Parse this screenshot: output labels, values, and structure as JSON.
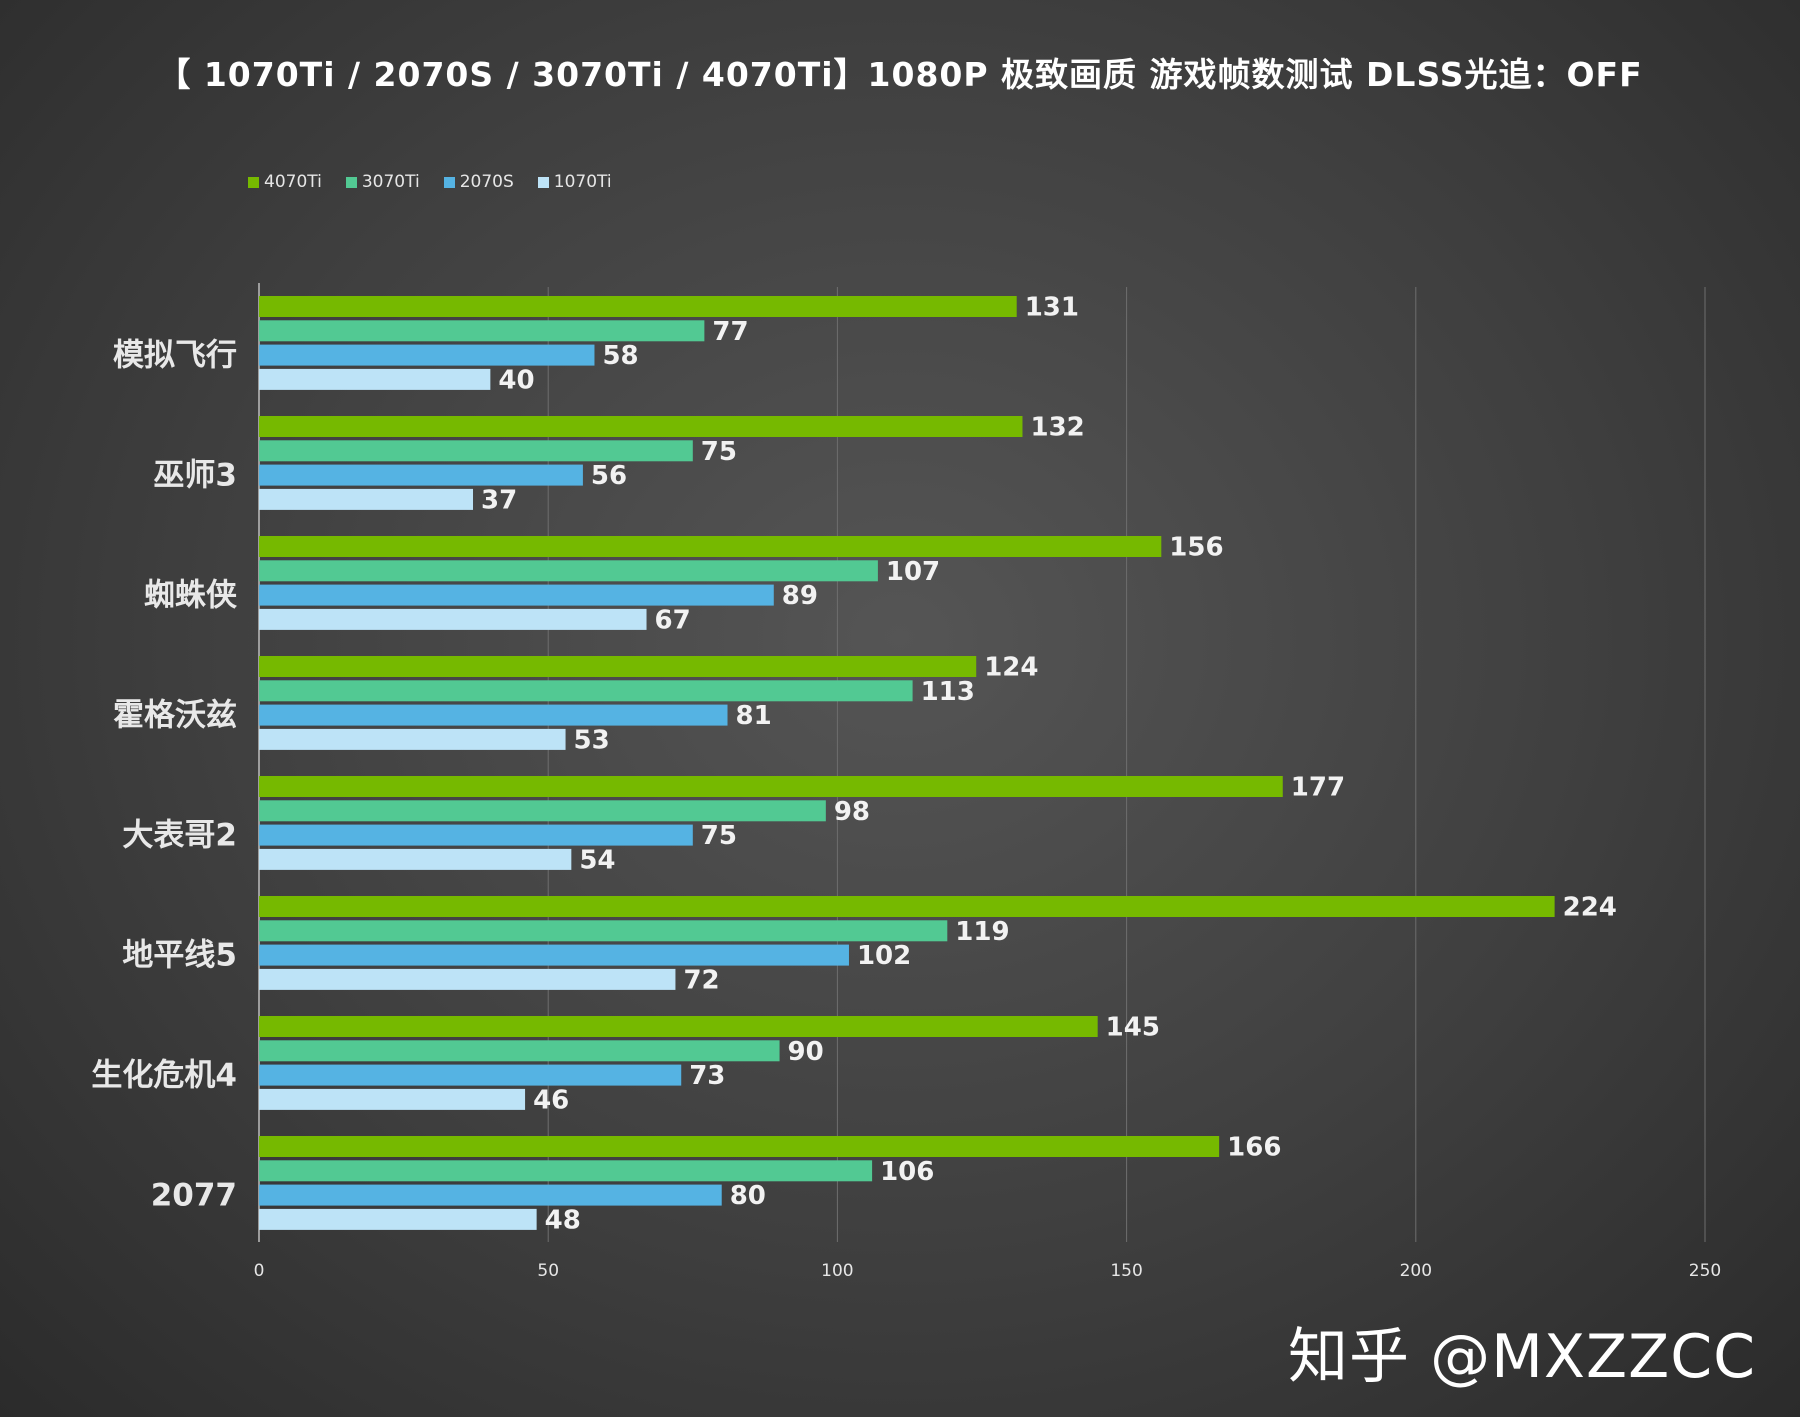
{
  "chart_data": {
    "type": "bar",
    "orientation": "horizontal",
    "title": "【 1070Ti / 2070S / 3070Ti / 4070Ti】1080P 极致画质 游戏帧数测试 DLSS光追：OFF",
    "categories": [
      "模拟飞行",
      "巫师3",
      "蜘蛛侠",
      "霍格沃兹",
      "大表哥2",
      "地平线5",
      "生化危机4",
      "2077"
    ],
    "series": [
      {
        "name": "4070Ti",
        "color": "#76b900",
        "values": [
          131,
          132,
          156,
          124,
          177,
          224,
          145,
          166
        ]
      },
      {
        "name": "3070Ti",
        "color": "#52c993",
        "values": [
          77,
          75,
          107,
          113,
          98,
          119,
          90,
          106
        ]
      },
      {
        "name": "2070S",
        "color": "#55b3e3",
        "values": [
          58,
          56,
          89,
          81,
          75,
          102,
          73,
          80
        ]
      },
      {
        "name": "1070Ti",
        "color": "#bde3f7",
        "values": [
          40,
          37,
          67,
          53,
          54,
          72,
          46,
          48
        ]
      }
    ],
    "xlim": [
      0,
      250
    ],
    "xticks": [
      0,
      50,
      100,
      150,
      200,
      250
    ],
    "xlabel": "",
    "ylabel": "",
    "grid": true,
    "legend_position": "top-left",
    "data_labels": true
  },
  "watermark": "知乎 @MXZZCC"
}
